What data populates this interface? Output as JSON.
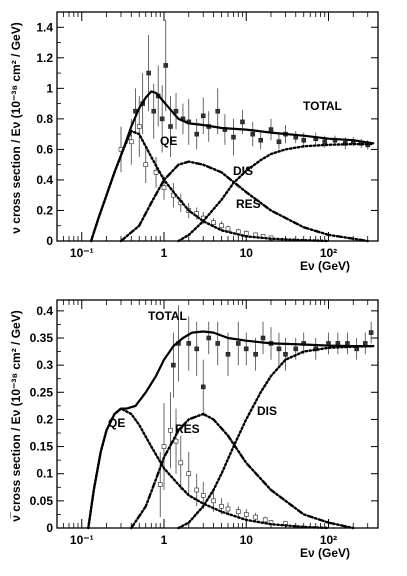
{
  "chart_data": [
    {
      "type": "line",
      "title": "",
      "xlabel": "Eν (GeV)",
      "ylabel": "ν cross section / Eν (10⁻³⁸ cm² / GeV)",
      "xscale": "log",
      "xlim": [
        0.05,
        400
      ],
      "ylim": [
        0,
        1.5
      ],
      "xticks": [
        {
          "value": 0.1,
          "label": "10⁻¹"
        },
        {
          "value": 1,
          "label": "1"
        },
        {
          "value": 10,
          "label": "10"
        },
        {
          "value": 100,
          "label": "10²"
        }
      ],
      "yticks": [
        {
          "value": 0,
          "label": "0"
        },
        {
          "value": 0.2,
          "label": "0.2"
        },
        {
          "value": 0.4,
          "label": "0.4"
        },
        {
          "value": 0.6,
          "label": "0.6"
        },
        {
          "value": 0.8,
          "label": "0.8"
        },
        {
          "value": 1,
          "label": "1"
        },
        {
          "value": 1.2,
          "label": "1.2"
        },
        {
          "value": 1.4,
          "label": "1.4"
        }
      ],
      "grid": false,
      "series": [
        {
          "name": "TOTAL",
          "style": "solid",
          "x": [
            0.13,
            0.16,
            0.2,
            0.25,
            0.32,
            0.4,
            0.5,
            0.6,
            0.7,
            0.8,
            0.9,
            1.0,
            1.2,
            1.5,
            2,
            3,
            5,
            10,
            20,
            50,
            100,
            200,
            350
          ],
          "y": [
            0.0,
            0.15,
            0.3,
            0.45,
            0.6,
            0.75,
            0.87,
            0.94,
            0.98,
            0.97,
            0.94,
            0.91,
            0.86,
            0.8,
            0.77,
            0.76,
            0.74,
            0.73,
            0.71,
            0.69,
            0.67,
            0.66,
            0.64
          ]
        },
        {
          "name": "QE",
          "style": "dotted",
          "x": [
            0.13,
            0.16,
            0.2,
            0.25,
            0.32,
            0.4,
            0.5,
            0.7,
            1,
            1.5,
            2,
            3,
            5,
            10,
            20,
            50,
            100
          ],
          "y": [
            0.0,
            0.15,
            0.3,
            0.45,
            0.6,
            0.72,
            0.7,
            0.55,
            0.4,
            0.28,
            0.2,
            0.13,
            0.07,
            0.03,
            0.015,
            0.005,
            0.0
          ]
        },
        {
          "name": "RES",
          "style": "dashdot",
          "x": [
            0.3,
            0.5,
            0.7,
            1,
            1.5,
            2,
            3,
            5,
            10,
            20,
            50,
            100,
            200,
            300
          ],
          "y": [
            0.0,
            0.1,
            0.25,
            0.4,
            0.5,
            0.52,
            0.5,
            0.45,
            0.32,
            0.2,
            0.09,
            0.04,
            0.015,
            0.0
          ]
        },
        {
          "name": "DIS",
          "style": "dotted",
          "x": [
            1.5,
            2,
            3,
            5,
            7,
            10,
            15,
            20,
            30,
            50,
            100,
            200,
            350
          ],
          "y": [
            0.0,
            0.04,
            0.13,
            0.27,
            0.38,
            0.46,
            0.53,
            0.57,
            0.6,
            0.62,
            0.63,
            0.635,
            0.635
          ]
        }
      ],
      "measurements": {
        "x": [
          0.45,
          0.55,
          0.65,
          0.75,
          0.85,
          0.95,
          1.05,
          1.2,
          1.4,
          1.7,
          2,
          2.5,
          3,
          3.5,
          4.5,
          5.5,
          7,
          9,
          12,
          15,
          20,
          25,
          30,
          40,
          50,
          70,
          90,
          120,
          160,
          200,
          250,
          300
        ],
        "y": [
          0.85,
          0.9,
          1.1,
          0.85,
          0.95,
          0.8,
          1.15,
          0.75,
          0.85,
          0.8,
          0.78,
          0.7,
          0.82,
          0.75,
          0.85,
          0.73,
          0.68,
          0.78,
          0.7,
          0.66,
          0.73,
          0.65,
          0.7,
          0.68,
          0.66,
          0.67,
          0.65,
          0.66,
          0.64,
          0.65,
          0.64,
          0.63
        ],
        "err": [
          0.15,
          0.2,
          0.25,
          0.18,
          0.2,
          0.22,
          0.3,
          0.2,
          0.12,
          0.1,
          0.15,
          0.1,
          0.12,
          0.1,
          0.15,
          0.1,
          0.12,
          0.08,
          0.08,
          0.06,
          0.07,
          0.05,
          0.06,
          0.04,
          0.05,
          0.04,
          0.04,
          0.03,
          0.04,
          0.03,
          0.03,
          0.03
        ]
      },
      "qe_measurements": {
        "x": [
          0.3,
          0.4,
          0.5,
          0.6,
          0.8,
          1.0,
          1.3,
          1.6,
          2,
          2.5,
          3,
          4,
          5,
          6,
          8,
          10,
          13,
          16,
          20
        ],
        "y": [
          0.6,
          0.65,
          0.75,
          0.5,
          0.45,
          0.35,
          0.3,
          0.25,
          0.2,
          0.18,
          0.15,
          0.12,
          0.1,
          0.08,
          0.06,
          0.05,
          0.04,
          0.03,
          0.02
        ],
        "err": [
          0.15,
          0.15,
          0.2,
          0.12,
          0.1,
          0.08,
          0.08,
          0.06,
          0.05,
          0.04,
          0.04,
          0.03,
          0.03,
          0.02,
          0.02,
          0.02,
          0.015,
          0.01,
          0.01
        ]
      }
    },
    {
      "type": "line",
      "title": "",
      "xlabel": "Eν (GeV)",
      "ylabel": "ν̅ cross section / Eν (10⁻³⁸ cm² / GeV)",
      "xscale": "log",
      "xlim": [
        0.05,
        400
      ],
      "ylim": [
        0,
        0.42
      ],
      "xticks": [
        {
          "value": 0.1,
          "label": "10⁻¹"
        },
        {
          "value": 1,
          "label": "1"
        },
        {
          "value": 10,
          "label": "10"
        },
        {
          "value": 100,
          "label": "10²"
        }
      ],
      "yticks": [
        {
          "value": 0,
          "label": "0"
        },
        {
          "value": 0.05,
          "label": "0.05"
        },
        {
          "value": 0.1,
          "label": "0.1"
        },
        {
          "value": 0.15,
          "label": "0.15"
        },
        {
          "value": 0.2,
          "label": "0.2"
        },
        {
          "value": 0.25,
          "label": "0.25"
        },
        {
          "value": 0.3,
          "label": "0.3"
        },
        {
          "value": 0.35,
          "label": "0.35"
        },
        {
          "value": 0.4,
          "label": "0.4"
        }
      ],
      "grid": false,
      "series": [
        {
          "name": "TOTAL",
          "style": "solid",
          "x": [
            0.12,
            0.14,
            0.17,
            0.2,
            0.25,
            0.3,
            0.35,
            0.45,
            0.6,
            0.8,
            1.0,
            1.3,
            1.7,
            2.2,
            3,
            4,
            6,
            10,
            20,
            50,
            100,
            200,
            350
          ],
          "y": [
            0.0,
            0.07,
            0.14,
            0.18,
            0.21,
            0.22,
            0.22,
            0.225,
            0.25,
            0.28,
            0.31,
            0.335,
            0.35,
            0.36,
            0.362,
            0.36,
            0.35,
            0.345,
            0.34,
            0.338,
            0.336,
            0.335,
            0.335
          ]
        },
        {
          "name": "QE",
          "style": "dotted",
          "x": [
            0.12,
            0.14,
            0.17,
            0.2,
            0.25,
            0.3,
            0.4,
            0.5,
            0.7,
            1,
            1.5,
            2,
            3,
            5,
            10,
            20,
            50,
            100
          ],
          "y": [
            0.0,
            0.07,
            0.14,
            0.18,
            0.21,
            0.22,
            0.21,
            0.19,
            0.15,
            0.11,
            0.08,
            0.06,
            0.045,
            0.03,
            0.015,
            0.007,
            0.002,
            0.0
          ]
        },
        {
          "name": "RES",
          "style": "dashdot",
          "x": [
            0.4,
            0.6,
            0.8,
            1,
            1.5,
            2,
            3,
            4,
            6,
            10,
            20,
            50,
            100,
            200
          ],
          "y": [
            0.0,
            0.04,
            0.09,
            0.13,
            0.18,
            0.2,
            0.21,
            0.2,
            0.17,
            0.12,
            0.07,
            0.025,
            0.01,
            0.0
          ]
        },
        {
          "name": "DIS",
          "style": "dotted",
          "x": [
            1.5,
            2,
            3,
            4,
            5,
            7,
            10,
            15,
            20,
            30,
            50,
            100,
            200,
            350
          ],
          "y": [
            0.0,
            0.01,
            0.04,
            0.07,
            0.1,
            0.15,
            0.2,
            0.25,
            0.28,
            0.31,
            0.325,
            0.332,
            0.334,
            0.335
          ]
        }
      ],
      "measurements": {
        "x": [
          1.3,
          1.5,
          2,
          2.5,
          3,
          3.5,
          4.5,
          6,
          8,
          10,
          13,
          16,
          20,
          25,
          30,
          40,
          50,
          70,
          100,
          130,
          170,
          220,
          280,
          330
        ],
        "y": [
          0.3,
          0.34,
          0.34,
          0.33,
          0.26,
          0.35,
          0.34,
          0.32,
          0.34,
          0.33,
          0.32,
          0.35,
          0.34,
          0.33,
          0.32,
          0.33,
          0.34,
          0.33,
          0.34,
          0.34,
          0.34,
          0.33,
          0.34,
          0.36
        ],
        "err": [
          0.06,
          0.07,
          0.05,
          0.05,
          0.05,
          0.03,
          0.04,
          0.04,
          0.04,
          0.03,
          0.03,
          0.03,
          0.03,
          0.03,
          0.03,
          0.02,
          0.02,
          0.02,
          0.02,
          0.02,
          0.02,
          0.02,
          0.02,
          0.02
        ]
      },
      "qe_measurements": {
        "x": [
          0.9,
          1.0,
          1.2,
          1.4,
          1.6,
          2,
          2.5,
          3,
          4,
          5,
          6,
          8,
          10,
          13,
          17,
          20,
          30
        ],
        "y": [
          0.08,
          0.15,
          0.18,
          0.16,
          0.12,
          0.1,
          0.07,
          0.06,
          0.05,
          0.04,
          0.035,
          0.03,
          0.025,
          0.02,
          0.015,
          0.01,
          0.008
        ],
        "err": [
          0.06,
          0.08,
          0.07,
          0.06,
          0.05,
          0.04,
          0.03,
          0.025,
          0.02,
          0.015,
          0.012,
          0.01,
          0.01,
          0.008,
          0.006,
          0.005,
          0.004
        ]
      }
    }
  ]
}
